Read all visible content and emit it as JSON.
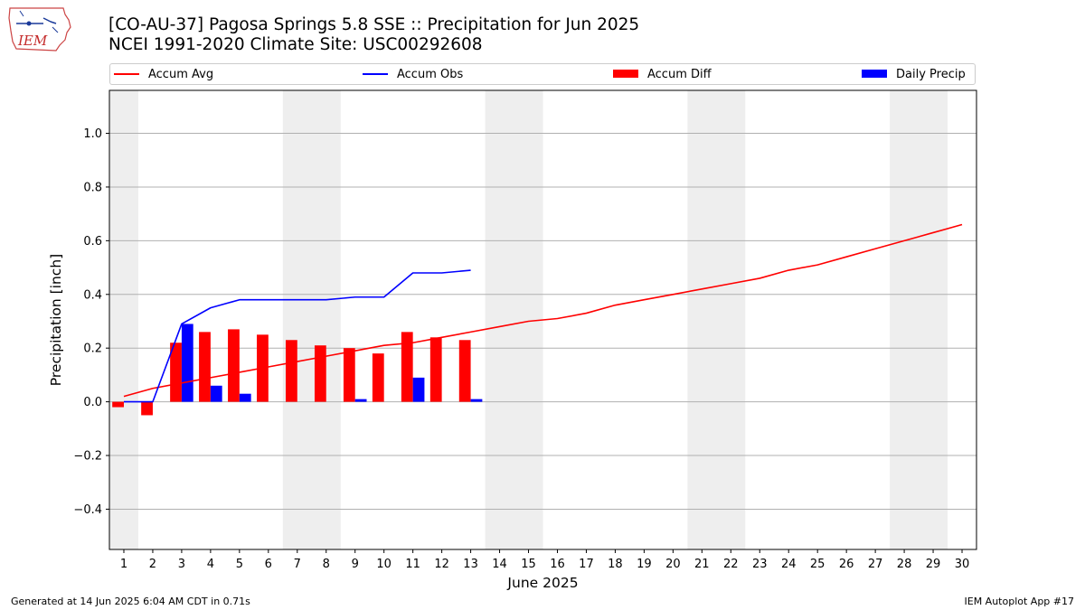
{
  "logo": {
    "text": "IEM"
  },
  "header": {
    "title_line1": "[CO-AU-37] Pagosa Springs 5.8 SSE :: Precipitation for Jun 2025",
    "title_line2": "NCEI 1991-2020 Climate Site: USC00292608"
  },
  "legend": {
    "items": [
      {
        "label": "Accum Avg",
        "color": "#ff0000",
        "kind": "line"
      },
      {
        "label": "Accum Obs",
        "color": "#0000ff",
        "kind": "line"
      },
      {
        "label": "Accum Diff",
        "color": "#ff0000",
        "kind": "patch"
      },
      {
        "label": "Daily Precip",
        "color": "#0000ff",
        "kind": "patch"
      }
    ],
    "placement": "top, above plot, spanning full width"
  },
  "footer": {
    "left": "Generated at 14 Jun 2025 6:04 AM CDT in 0.71s",
    "right": "IEM Autoplot App #17"
  },
  "chart_data": {
    "type": "bar",
    "xlabel": "June 2025",
    "ylabel": "Precipitation [inch]",
    "xlim": [
      0.5,
      30.5
    ],
    "ylim": [
      -0.55,
      1.16
    ],
    "yticks": [
      -0.4,
      -0.2,
      0.0,
      0.2,
      0.4,
      0.6,
      0.8,
      1.0
    ],
    "ytick_labels": [
      "−0.4",
      "−0.2",
      "0.0",
      "0.2",
      "0.4",
      "0.6",
      "0.8",
      "1.0"
    ],
    "x": [
      1,
      2,
      3,
      4,
      5,
      6,
      7,
      8,
      9,
      10,
      11,
      12,
      13,
      14,
      15,
      16,
      17,
      18,
      19,
      20,
      21,
      22,
      23,
      24,
      25,
      26,
      27,
      28,
      29,
      30
    ],
    "xtick_labels": [
      "1",
      "2",
      "3",
      "4",
      "5",
      "6",
      "7",
      "8",
      "9",
      "10",
      "11",
      "12",
      "13",
      "14",
      "15",
      "16",
      "17",
      "18",
      "19",
      "20",
      "21",
      "22",
      "23",
      "24",
      "25",
      "26",
      "27",
      "28",
      "29",
      "30"
    ],
    "grid": "horizontal",
    "weekend_shading": [
      [
        0.5,
        1.5
      ],
      [
        6.5,
        8.5
      ],
      [
        13.5,
        15.5
      ],
      [
        20.5,
        22.5
      ],
      [
        27.5,
        29.5
      ]
    ],
    "weekend_color": "#eeeeee",
    "series": [
      {
        "name": "Accum Avg",
        "kind": "line",
        "color": "#ff0000",
        "x": [
          1,
          2,
          3,
          4,
          5,
          6,
          7,
          8,
          9,
          10,
          11,
          12,
          13,
          14,
          15,
          16,
          17,
          18,
          19,
          20,
          21,
          22,
          23,
          24,
          25,
          26,
          27,
          28,
          29,
          30
        ],
        "values": [
          0.02,
          0.05,
          0.07,
          0.09,
          0.11,
          0.13,
          0.15,
          0.17,
          0.19,
          0.21,
          0.22,
          0.24,
          0.26,
          0.28,
          0.3,
          0.31,
          0.33,
          0.36,
          0.38,
          0.4,
          0.42,
          0.44,
          0.46,
          0.49,
          0.51,
          0.54,
          0.57,
          0.6,
          0.63,
          0.66
        ]
      },
      {
        "name": "Accum Obs",
        "kind": "line",
        "color": "#0000ff",
        "x": [
          1,
          2,
          3,
          4,
          5,
          6,
          7,
          8,
          9,
          10,
          11,
          12,
          13
        ],
        "values": [
          0.0,
          0.0,
          0.29,
          0.35,
          0.38,
          0.38,
          0.38,
          0.38,
          0.39,
          0.39,
          0.48,
          0.48,
          0.49
        ]
      },
      {
        "name": "Accum Diff",
        "kind": "bar",
        "color": "#ff0000",
        "x": [
          1,
          2,
          3,
          4,
          5,
          6,
          7,
          8,
          9,
          10,
          11,
          12,
          13
        ],
        "values": [
          -0.02,
          -0.05,
          0.22,
          0.26,
          0.27,
          0.25,
          0.23,
          0.21,
          0.2,
          0.18,
          0.26,
          0.24,
          0.23
        ]
      },
      {
        "name": "Daily Precip",
        "kind": "bar",
        "color": "#0000ff",
        "x": [
          1,
          2,
          3,
          4,
          5,
          6,
          7,
          8,
          9,
          10,
          11,
          12,
          13
        ],
        "values": [
          0.0,
          0.0,
          0.29,
          0.06,
          0.03,
          0.0,
          0.0,
          0.0,
          0.01,
          0.0,
          0.09,
          0.0,
          0.01
        ]
      }
    ]
  }
}
